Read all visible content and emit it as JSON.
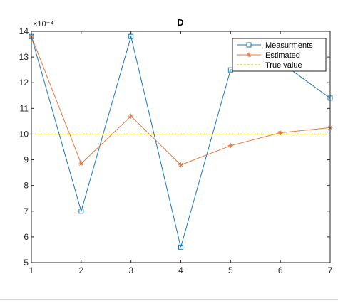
{
  "chart_data": {
    "type": "line",
    "title": "D",
    "xlabel": "",
    "ylabel": "",
    "exponent_label": "×10⁻⁴",
    "x": [
      1,
      2,
      3,
      4,
      5,
      6,
      7
    ],
    "xlim": [
      1,
      7
    ],
    "ylim": [
      5,
      14
    ],
    "xticks": [
      1,
      2,
      3,
      4,
      5,
      6,
      7
    ],
    "yticks": [
      5,
      6,
      7,
      8,
      9,
      10,
      11,
      12,
      13,
      14
    ],
    "grid": false,
    "legend_position": "top-right",
    "series": [
      {
        "name": "Measurments",
        "values": [
          13.8,
          7.0,
          13.8,
          5.6,
          12.5,
          12.8,
          11.4
        ],
        "color": "#1f77b4",
        "marker": "square",
        "line_style": "solid"
      },
      {
        "name": "Estimated",
        "values": [
          13.8,
          8.85,
          10.7,
          8.8,
          9.55,
          10.05,
          10.25
        ],
        "color": "#e8783c",
        "marker": "star",
        "line_style": "solid"
      },
      {
        "name": "True value",
        "values": [
          10,
          10,
          10,
          10,
          10,
          10,
          10
        ],
        "color": "#e6b800",
        "marker": "none",
        "line_style": "dashed"
      }
    ]
  }
}
